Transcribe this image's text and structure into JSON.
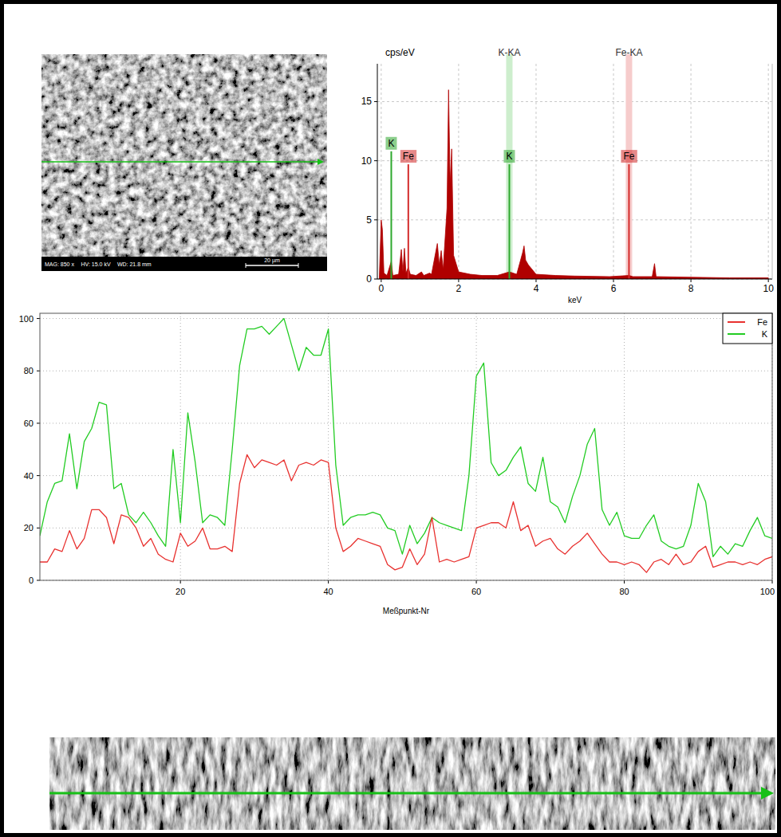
{
  "sem_image": {
    "info": [
      "MAG: 850 x",
      "HV: 15.0 kV",
      "WD: 21.8 mm"
    ],
    "scale_bar": "20 µm"
  },
  "chart_data": [
    {
      "type": "area",
      "ylabel": "cps/eV",
      "xlabel": "keV",
      "x": [
        -0.05,
        0,
        0.03,
        0.07,
        0.15,
        0.26,
        0.3,
        0.45,
        0.52,
        0.56,
        0.6,
        0.64,
        0.7,
        0.75,
        0.9,
        1.04,
        1.1,
        1.25,
        1.3,
        1.45,
        1.5,
        1.55,
        1.6,
        1.7,
        1.74,
        1.78,
        1.82,
        1.87,
        2.0,
        2.3,
        2.6,
        3.0,
        3.31,
        3.5,
        3.65,
        3.69,
        3.73,
        3.8,
        4.0,
        4.5,
        5.0,
        5.9,
        6.4,
        6.5,
        7.0,
        7.06,
        7.1,
        8.0,
        9.0,
        10.0
      ],
      "values": [
        0,
        5.0,
        4.2,
        0.5,
        0.3,
        1.5,
        0.3,
        0.4,
        2.5,
        0.6,
        2.6,
        0.5,
        1.0,
        0.4,
        0.3,
        0.6,
        0.3,
        0.5,
        0.4,
        3.0,
        1.2,
        2.4,
        0.8,
        6.0,
        16.0,
        8.0,
        11.0,
        2.0,
        0.6,
        0.4,
        0.3,
        0.3,
        0.6,
        0.4,
        2.2,
        2.8,
        1.6,
        1.2,
        0.4,
        0.3,
        0.25,
        0.2,
        0.3,
        0.2,
        0.2,
        1.3,
        0.2,
        0.15,
        0.1,
        0.1
      ],
      "color": "#b00000",
      "xlim": [
        -0.1,
        10.1
      ],
      "ylim": [
        0,
        18.2
      ],
      "xticks": [
        0,
        2,
        4,
        6,
        8,
        10
      ],
      "yticks": [
        0,
        5,
        10,
        15
      ],
      "grid": true,
      "element_lines": [
        {
          "label": "K",
          "x": 0.26,
          "height": 10.8,
          "color": "#2ea82e"
        },
        {
          "label": "Fe",
          "x": 0.7,
          "height": 9.7,
          "color": "#d42a2a"
        },
        {
          "label": "K",
          "x": 3.31,
          "height": 9.7,
          "color": "#2ea82e"
        },
        {
          "label": "Fe",
          "x": 6.4,
          "height": 9.7,
          "color": "#d42a2a"
        }
      ],
      "line_bands": [
        {
          "label": "K-KA",
          "x": 3.31,
          "color": "#cdeecd"
        },
        {
          "label": "Fe-KA",
          "x": 6.4,
          "color": "#f6cccc"
        }
      ]
    },
    {
      "type": "line",
      "xlabel": "Meßpunkt-Nr",
      "x": [
        1,
        2,
        3,
        4,
        5,
        6,
        7,
        8,
        9,
        10,
        11,
        12,
        13,
        14,
        15,
        16,
        17,
        18,
        19,
        20,
        21,
        22,
        23,
        24,
        25,
        26,
        27,
        28,
        29,
        30,
        31,
        32,
        33,
        34,
        35,
        36,
        37,
        38,
        39,
        40,
        41,
        42,
        43,
        44,
        45,
        46,
        47,
        48,
        49,
        50,
        51,
        52,
        53,
        54,
        55,
        56,
        57,
        58,
        59,
        60,
        61,
        62,
        63,
        64,
        65,
        66,
        67,
        68,
        69,
        70,
        71,
        72,
        73,
        74,
        75,
        76,
        77,
        78,
        79,
        80,
        81,
        82,
        83,
        84,
        85,
        86,
        87,
        88,
        89,
        90,
        91,
        92,
        93,
        94,
        95,
        96,
        97,
        98,
        99,
        100
      ],
      "series": [
        {
          "name": "Fe",
          "color": "#e8312f",
          "values": [
            7,
            7,
            12,
            11,
            19,
            12,
            16,
            27,
            27,
            24,
            14,
            25,
            24,
            20,
            13,
            16,
            10,
            8,
            7,
            18,
            13,
            15,
            20,
            12,
            12,
            13,
            11,
            37,
            48,
            43,
            46,
            45,
            44,
            46,
            38,
            44,
            45,
            44,
            46,
            45,
            20,
            11,
            13,
            16,
            15,
            14,
            13,
            6,
            4,
            5,
            12,
            6,
            10,
            24,
            7,
            8,
            7,
            8,
            9,
            20,
            21,
            22,
            22,
            20,
            30,
            19,
            21,
            13,
            15,
            16,
            12,
            10,
            13,
            15,
            18,
            14,
            10,
            7,
            7,
            6,
            7,
            6,
            3,
            7,
            8,
            6,
            10,
            6,
            7,
            11,
            13,
            5,
            6,
            7,
            7,
            6,
            7,
            6,
            8,
            9
          ]
        },
        {
          "name": "K",
          "color": "#22cc22",
          "values": [
            17,
            30,
            37,
            38,
            56,
            35,
            53,
            58,
            68,
            67,
            35,
            37,
            25,
            22,
            26,
            22,
            17,
            13,
            50,
            22,
            64,
            45,
            22,
            25,
            24,
            21,
            50,
            82,
            96,
            96,
            97,
            94,
            97,
            100,
            90,
            80,
            89,
            86,
            86,
            96,
            44,
            21,
            24,
            25,
            25,
            26,
            25,
            20,
            19,
            10,
            21,
            14,
            18,
            24,
            22,
            21,
            20,
            19,
            40,
            78,
            83,
            45,
            40,
            42,
            47,
            51,
            37,
            34,
            47,
            30,
            28,
            22,
            32,
            40,
            52,
            58,
            27,
            21,
            26,
            17,
            16,
            16,
            21,
            25,
            15,
            13,
            12,
            13,
            21,
            37,
            30,
            9,
            13,
            10,
            14,
            13,
            19,
            24,
            17,
            16
          ]
        }
      ],
      "xlim": [
        1,
        100
      ],
      "ylim": [
        0,
        102
      ],
      "xticks": [
        20,
        40,
        60,
        80,
        100
      ],
      "yticks": [
        0,
        20,
        40,
        60,
        80,
        100
      ],
      "grid": true,
      "legend": "top-right"
    }
  ]
}
